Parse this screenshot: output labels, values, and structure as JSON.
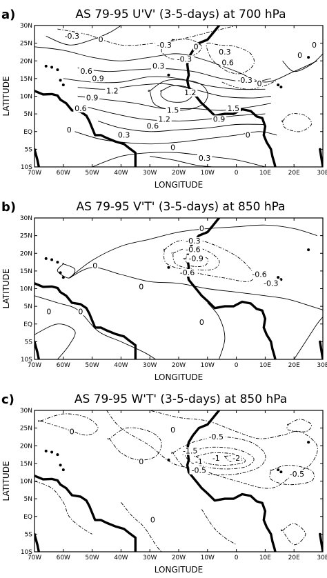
{
  "chart_data": [
    {
      "type": "contour",
      "panel_label": "a)",
      "title": "AS 79-95 U'V' (3-5-days) at 700 hPa",
      "xlabel": "LONGITUDE",
      "ylabel": "LATITUDE",
      "xticks": [
        "70W",
        "60W",
        "50W",
        "40W",
        "30W",
        "20W",
        "10W",
        "0",
        "10E",
        "20E",
        "30E"
      ],
      "yticks": [
        "10S",
        "5S",
        "EQ",
        "5N",
        "10N",
        "15N",
        "20N",
        "25N",
        "30N"
      ],
      "xlim": [
        -70,
        30
      ],
      "ylim": [
        -10,
        30
      ],
      "contour_labels": [
        {
          "text": "-0.3",
          "lon": -57,
          "lat": 26.5
        },
        {
          "text": "0",
          "lon": -47,
          "lat": 25.5
        },
        {
          "text": "-0.3",
          "lon": -25,
          "lat": 24
        },
        {
          "text": "0",
          "lon": -14,
          "lat": 23.5
        },
        {
          "text": "-0.3",
          "lon": -18,
          "lat": 20
        },
        {
          "text": "0.3",
          "lon": -4,
          "lat": 22
        },
        {
          "text": "0.3",
          "lon": -27,
          "lat": 18
        },
        {
          "text": "0.6",
          "lon": -3,
          "lat": 19
        },
        {
          "text": "0.9",
          "lon": -48,
          "lat": 14.5
        },
        {
          "text": "0.6",
          "lon": -52,
          "lat": 16.5
        },
        {
          "text": "1.2",
          "lon": -43,
          "lat": 11
        },
        {
          "text": "0.9",
          "lon": -50,
          "lat": 9
        },
        {
          "text": "0.6",
          "lon": -54,
          "lat": 6
        },
        {
          "text": "1.2",
          "lon": -16,
          "lat": 10.5
        },
        {
          "text": "-0.3",
          "lon": 3,
          "lat": 14
        },
        {
          "text": "0",
          "lon": 8,
          "lat": 13
        },
        {
          "text": "1.5",
          "lon": -22,
          "lat": 5.5
        },
        {
          "text": "1.2",
          "lon": -25,
          "lat": 3
        },
        {
          "text": "1.5",
          "lon": -1,
          "lat": 6
        },
        {
          "text": "0.9",
          "lon": -6,
          "lat": 3
        },
        {
          "text": "0.6",
          "lon": -29,
          "lat": 1
        },
        {
          "text": "0.3",
          "lon": -39,
          "lat": -1.5
        },
        {
          "text": "0",
          "lon": -58,
          "lat": 0
        },
        {
          "text": "0",
          "lon": -22,
          "lat": -5
        },
        {
          "text": "0.3",
          "lon": -11,
          "lat": -8
        },
        {
          "text": "0",
          "lon": 4,
          "lat": -1.5
        },
        {
          "text": "0",
          "lon": 22,
          "lat": 21
        },
        {
          "text": "0",
          "lon": 27,
          "lat": 24
        }
      ]
    },
    {
      "type": "contour",
      "panel_label": "b)",
      "title": "AS 79-95 V'T' (3-5-days) at 850 hPa",
      "xlabel": "LONGITUDE",
      "ylabel": "LATITUDE",
      "xticks": [
        "70W",
        "60W",
        "50W",
        "40W",
        "30W",
        "20W",
        "10W",
        "0",
        "10E",
        "20E",
        "30E"
      ],
      "yticks": [
        "10S",
        "5S",
        "EQ",
        "5N",
        "10N",
        "15N",
        "20N",
        "25N",
        "30N"
      ],
      "xlim": [
        -70,
        30
      ],
      "ylim": [
        -10,
        30
      ],
      "contour_labels": [
        {
          "text": "0",
          "lon": -12,
          "lat": 26.5
        },
        {
          "text": "-0.3",
          "lon": -15,
          "lat": 23
        },
        {
          "text": "-0.6",
          "lon": -15,
          "lat": 20.5
        },
        {
          "text": "-0.9",
          "lon": -14,
          "lat": 18
        },
        {
          "text": "-0.6",
          "lon": -17,
          "lat": 14
        },
        {
          "text": "-0.6",
          "lon": 8,
          "lat": 13.5
        },
        {
          "text": "-0.3",
          "lon": 12,
          "lat": 11
        },
        {
          "text": "0",
          "lon": -49,
          "lat": 16
        },
        {
          "text": "0",
          "lon": -33,
          "lat": 10
        },
        {
          "text": "0",
          "lon": -65,
          "lat": 3
        },
        {
          "text": "0",
          "lon": -54,
          "lat": 3
        },
        {
          "text": "0",
          "lon": -12,
          "lat": 0
        }
      ]
    },
    {
      "type": "contour",
      "panel_label": "c)",
      "title": "AS 79-95 W'T' (3-5-days) at 850 hPa",
      "xlabel": "LONGITUDE",
      "ylabel": "LATITUDE",
      "xticks": [
        "70W",
        "60W",
        "50W",
        "40W",
        "30W",
        "20W",
        "10W",
        "0",
        "10E",
        "20E",
        "30E"
      ],
      "yticks": [
        "10S",
        "5S",
        "EQ",
        "5N",
        "10N",
        "15N",
        "20N",
        "25N",
        "30N"
      ],
      "xlim": [
        -70,
        30
      ],
      "ylim": [
        -10,
        30
      ],
      "contour_labels": [
        {
          "text": "0",
          "lon": -57,
          "lat": 23.5
        },
        {
          "text": "0",
          "lon": -22,
          "lat": 24
        },
        {
          "text": "0",
          "lon": -33,
          "lat": 15
        },
        {
          "text": "-0.5",
          "lon": -7,
          "lat": 22
        },
        {
          "text": "-1.5",
          "lon": -16,
          "lat": 18
        },
        {
          "text": "-1",
          "lon": -7,
          "lat": 16
        },
        {
          "text": "-2",
          "lon": 0,
          "lat": 16
        },
        {
          "text": "-1",
          "lon": -13,
          "lat": 15
        },
        {
          "text": "-0.5",
          "lon": -13,
          "lat": 12.5
        },
        {
          "text": "-0.5",
          "lon": 21,
          "lat": 11.5
        },
        {
          "text": "0",
          "lon": -29,
          "lat": -1.5
        }
      ]
    }
  ]
}
